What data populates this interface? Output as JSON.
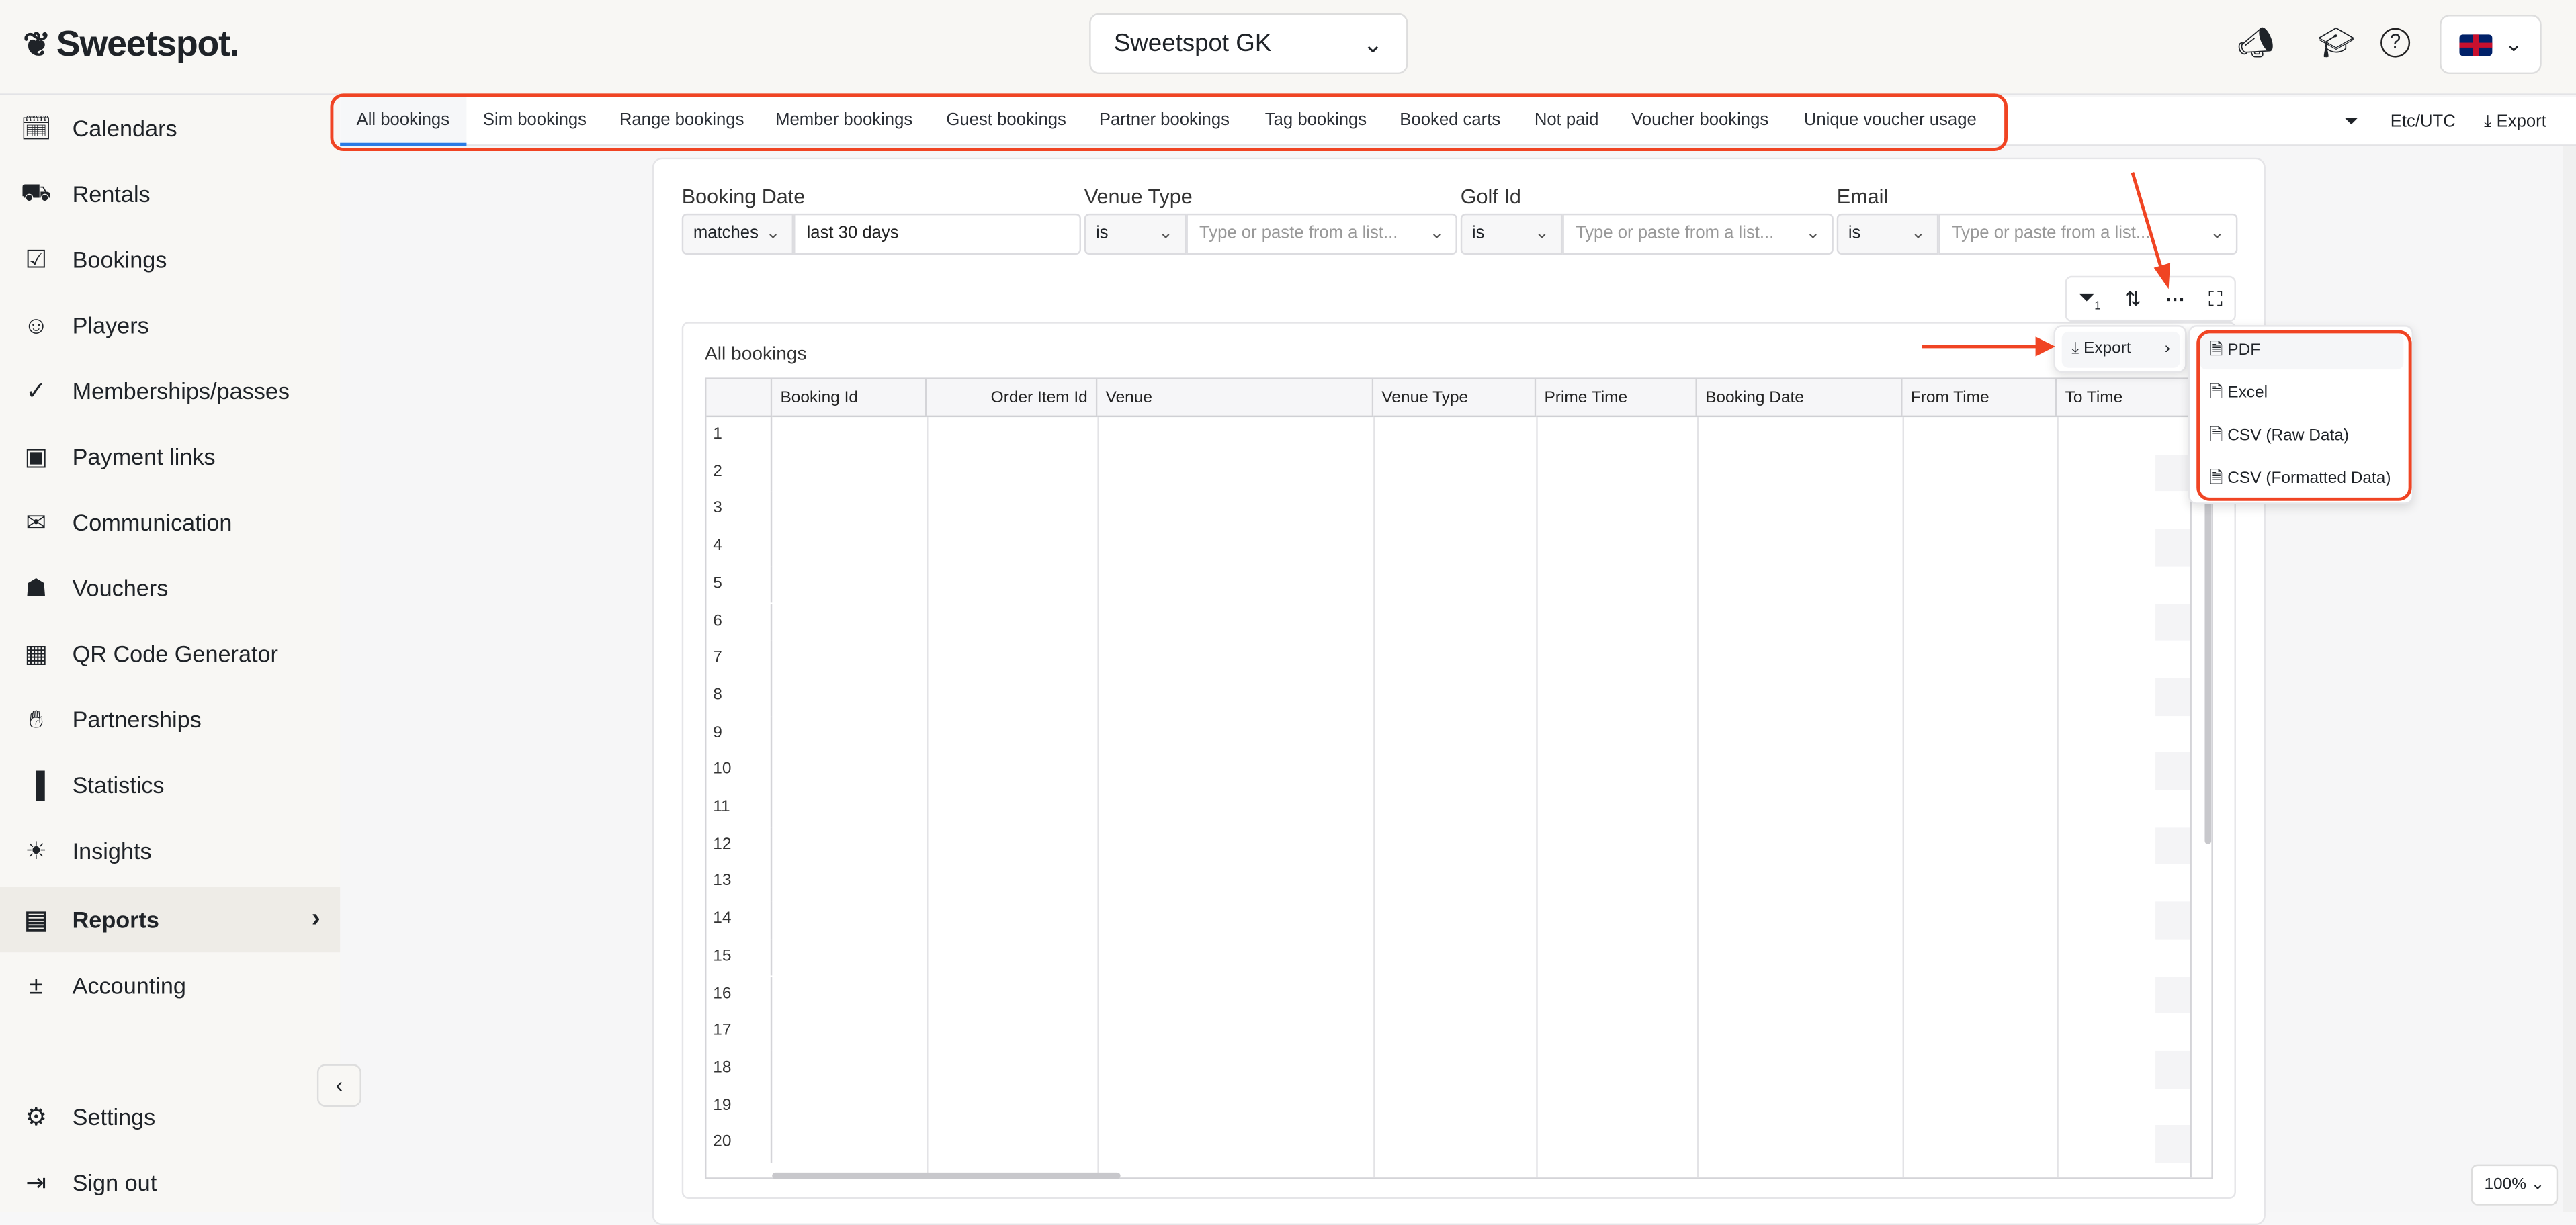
{
  "header": {
    "logo": "Sweetspot.",
    "venue": "Sweetspot GK",
    "icons": [
      "megaphone-icon",
      "graduation-cap-icon",
      "help-icon",
      "uk-flag-icon"
    ]
  },
  "sidebar": {
    "items": [
      {
        "label": "Calendars",
        "icon": "calendar-icon"
      },
      {
        "label": "Rentals",
        "icon": "golf-cart-icon"
      },
      {
        "label": "Bookings",
        "icon": "calendar-check-icon"
      },
      {
        "label": "Players",
        "icon": "users-icon"
      },
      {
        "label": "Memberships/passes",
        "icon": "check-circle-icon"
      },
      {
        "label": "Payment links",
        "icon": "payment-icon"
      },
      {
        "label": "Communication",
        "icon": "mail-icon"
      },
      {
        "label": "Vouchers",
        "icon": "gift-icon"
      },
      {
        "label": "QR Code Generator",
        "icon": "qr-icon"
      },
      {
        "label": "Partnerships",
        "icon": "handshake-icon"
      },
      {
        "label": "Statistics",
        "icon": "bar-chart-icon"
      },
      {
        "label": "Insights",
        "icon": "lightbulb-icon"
      },
      {
        "label": "Reports",
        "icon": "report-icon",
        "active": true
      },
      {
        "label": "Accounting",
        "icon": "calculator-icon"
      }
    ],
    "settings": "Settings",
    "sign_out": "Sign out"
  },
  "tabs": [
    "All bookings",
    "Sim bookings",
    "Range bookings",
    "Member bookings",
    "Guest bookings",
    "Partner bookings",
    "Tag bookings",
    "Booked carts",
    "Not paid",
    "Voucher bookings",
    "Unique voucher usage"
  ],
  "active_tab": "All bookings",
  "tabbar_right": {
    "timezone": "Etc/UTC",
    "export": "Export"
  },
  "filters": [
    {
      "label": "Booking Date",
      "operator": "matches",
      "value": "last 30 days"
    },
    {
      "label": "Venue Type",
      "operator": "is",
      "placeholder": "Type or paste from a list..."
    },
    {
      "label": "Golf Id",
      "operator": "is",
      "placeholder": "Type or paste from a list..."
    },
    {
      "label": "Email",
      "operator": "is",
      "placeholder": "Type or paste from a list..."
    }
  ],
  "table": {
    "title": "All bookings",
    "columns": [
      "Booking Id",
      "Order Item Id",
      "Venue",
      "Venue Type",
      "Prime Time",
      "Booking Date",
      "From Time",
      "To Time"
    ],
    "row_numbers": [
      "1",
      "2",
      "3",
      "4",
      "5",
      "6",
      "7",
      "8",
      "9",
      "10",
      "11",
      "12",
      "13",
      "14",
      "15",
      "16",
      "17",
      "18",
      "19",
      "20"
    ]
  },
  "export_menu": {
    "label": "Export",
    "options": [
      "PDF",
      "Excel",
      "CSV (Raw Data)",
      "CSV (Formatted Data)"
    ]
  },
  "zoom": "100%",
  "colors": {
    "highlight": "#f04423",
    "accent": "#2c7be5"
  }
}
